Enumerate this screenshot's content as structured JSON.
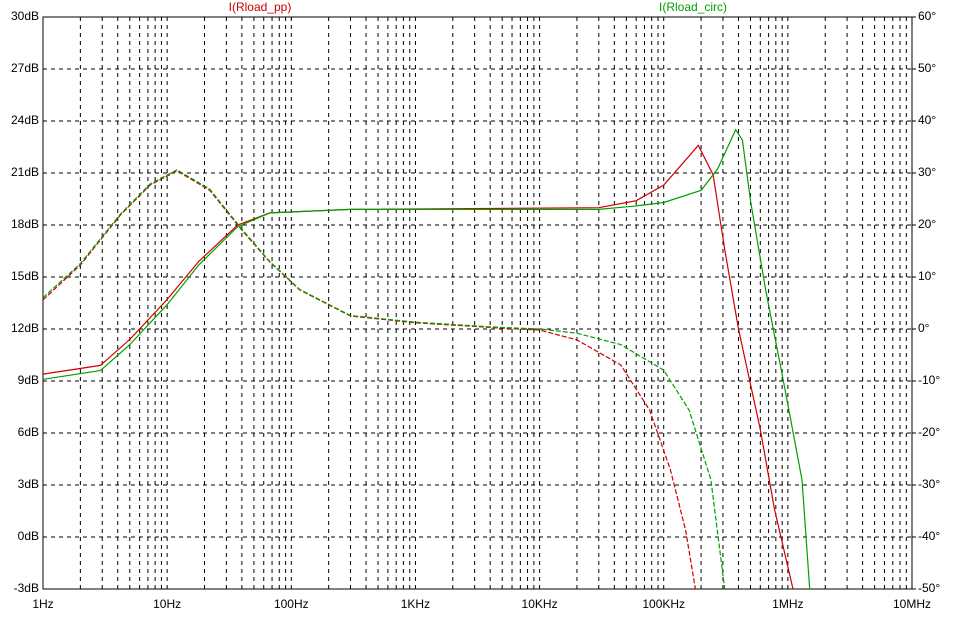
{
  "chart_data": {
    "type": "bode",
    "xscale": "log",
    "xlim": [
      1,
      10000000
    ],
    "xticks": [
      {
        "value": 1,
        "label": "1Hz"
      },
      {
        "value": 10,
        "label": "10Hz"
      },
      {
        "value": 100,
        "label": "100Hz"
      },
      {
        "value": 1000,
        "label": "1KHz"
      },
      {
        "value": 10000,
        "label": "10KHz"
      },
      {
        "value": 100000,
        "label": "100KHz"
      },
      {
        "value": 1000000,
        "label": "1MHz"
      },
      {
        "value": 10000000,
        "label": "10MHz"
      }
    ],
    "ylim": [
      -3,
      30
    ],
    "yticks": [
      {
        "value": 30,
        "label": "30dB"
      },
      {
        "value": 27,
        "label": "27dB"
      },
      {
        "value": 24,
        "label": "24dB"
      },
      {
        "value": 21,
        "label": "21dB"
      },
      {
        "value": 18,
        "label": "18dB"
      },
      {
        "value": 15,
        "label": "15dB"
      },
      {
        "value": 12,
        "label": "12dB"
      },
      {
        "value": 9,
        "label": "9dB"
      },
      {
        "value": 6,
        "label": "6dB"
      },
      {
        "value": 3,
        "label": "3dB"
      },
      {
        "value": 0,
        "label": "0dB"
      },
      {
        "value": -3,
        "label": "-3dB"
      }
    ],
    "y2lim": [
      -50,
      60
    ],
    "y2ticks": [
      {
        "value": 60,
        "label": "60°"
      },
      {
        "value": 50,
        "label": "50°"
      },
      {
        "value": 40,
        "label": "40°"
      },
      {
        "value": 30,
        "label": "30°"
      },
      {
        "value": 20,
        "label": "20°"
      },
      {
        "value": 10,
        "label": "10°"
      },
      {
        "value": 0,
        "label": "0°"
      },
      {
        "value": -10,
        "label": "-10°"
      },
      {
        "value": -20,
        "label": "-20°"
      },
      {
        "value": -30,
        "label": "-30°"
      },
      {
        "value": -40,
        "label": "-40°"
      },
      {
        "value": -50,
        "label": "-50°"
      }
    ],
    "grid": true,
    "series": [
      {
        "name": "I(Rload_pp)",
        "color": "#d00000",
        "magnitude": {
          "x": [
            1,
            2.9,
            5,
            10,
            18,
            37,
            67,
            300,
            30000,
            60000,
            100000,
            140000,
            190000,
            250000,
            310000,
            400000,
            600000,
            780000,
            1100000
          ],
          "values": [
            9.4,
            9.9,
            11.4,
            13.7,
            15.9,
            18,
            18.7,
            18.9,
            19,
            19.4,
            20.3,
            21.5,
            22.6,
            20.9,
            16.6,
            12,
            6.2,
            1.6,
            -3
          ]
        },
        "phase": {
          "axis": "y2",
          "x": [
            1,
            2,
            4.2,
            7.3,
            12,
            22,
            40,
            67,
            117,
            300,
            1000,
            4800,
            10000,
            20000,
            45000,
            77000,
            113000,
            150000,
            180000
          ],
          "values": [
            5.6,
            12.3,
            21.9,
            27.7,
            30.4,
            26.7,
            19,
            12.9,
            7.5,
            2.5,
            1.2,
            0.2,
            -0.2,
            -2.1,
            -6.9,
            -15.6,
            -27,
            -38.7,
            -50
          ]
        }
      },
      {
        "name": "I(Rload_circ)",
        "color": "#00a000",
        "magnitude": {
          "x": [
            1,
            2.9,
            5,
            10,
            18,
            37,
            67,
            300,
            30000,
            60000,
            100000,
            200000,
            270000,
            380000,
            430000,
            500000,
            660000,
            920000,
            1300000,
            1500000
          ],
          "values": [
            9.1,
            9.6,
            11.1,
            13.4,
            15.7,
            17.9,
            18.7,
            18.9,
            18.9,
            19.1,
            19.3,
            20,
            21.2,
            23.5,
            22.9,
            19.4,
            14.3,
            9,
            3.3,
            -3
          ]
        },
        "phase": {
          "axis": "y2",
          "x": [
            1,
            2,
            4.2,
            7.3,
            12,
            22,
            40,
            67,
            117,
            300,
            1000,
            4800,
            10000,
            20000,
            45000,
            100000,
            160000,
            240000,
            310000
          ],
          "values": [
            6,
            12.6,
            22.1,
            27.9,
            30.6,
            26.9,
            19.2,
            13,
            7.6,
            2.6,
            1.3,
            0.3,
            0,
            -0.8,
            -3,
            -7.9,
            -15.6,
            -29,
            -50
          ]
        }
      }
    ]
  }
}
